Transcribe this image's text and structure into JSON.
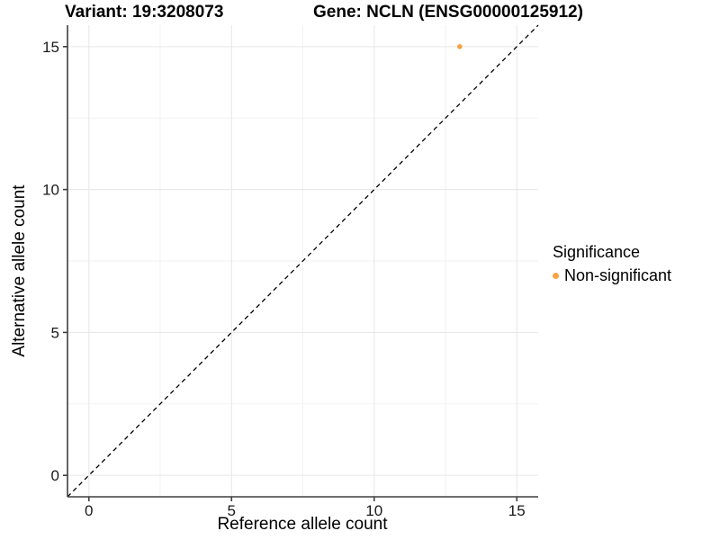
{
  "chart_data": {
    "type": "scatter",
    "title_left": "Variant: 19:3208073",
    "title_right": "Gene: NCLN (ENSG00000125912)",
    "xlabel": "Reference allele count",
    "ylabel": "Alternative allele count",
    "xlim": [
      0,
      15
    ],
    "ylim": [
      0,
      15
    ],
    "expansion": 0.75,
    "x_ticks": [
      0,
      5,
      10,
      15
    ],
    "y_ticks": [
      0,
      5,
      10,
      15
    ],
    "x_minor_ticks": [
      2.5,
      7.5,
      12.5
    ],
    "y_minor_ticks": [
      2.5,
      7.5,
      12.5
    ],
    "grid": true,
    "identity_line": {
      "style": "dashed",
      "color": "#000000"
    },
    "points": [
      {
        "x": 13,
        "y": 15,
        "series": "Non-significant"
      }
    ],
    "legend": {
      "title": "Significance",
      "position": "right",
      "items": [
        {
          "label": "Non-significant",
          "color": "#F9A242"
        }
      ]
    },
    "colors": {
      "point": "#F9A242",
      "grid_major": "#E6E6E6",
      "grid_minor": "#F2F2F2",
      "axis_line": "#3F3F3F",
      "tick_label": "#1A1A1A"
    }
  }
}
